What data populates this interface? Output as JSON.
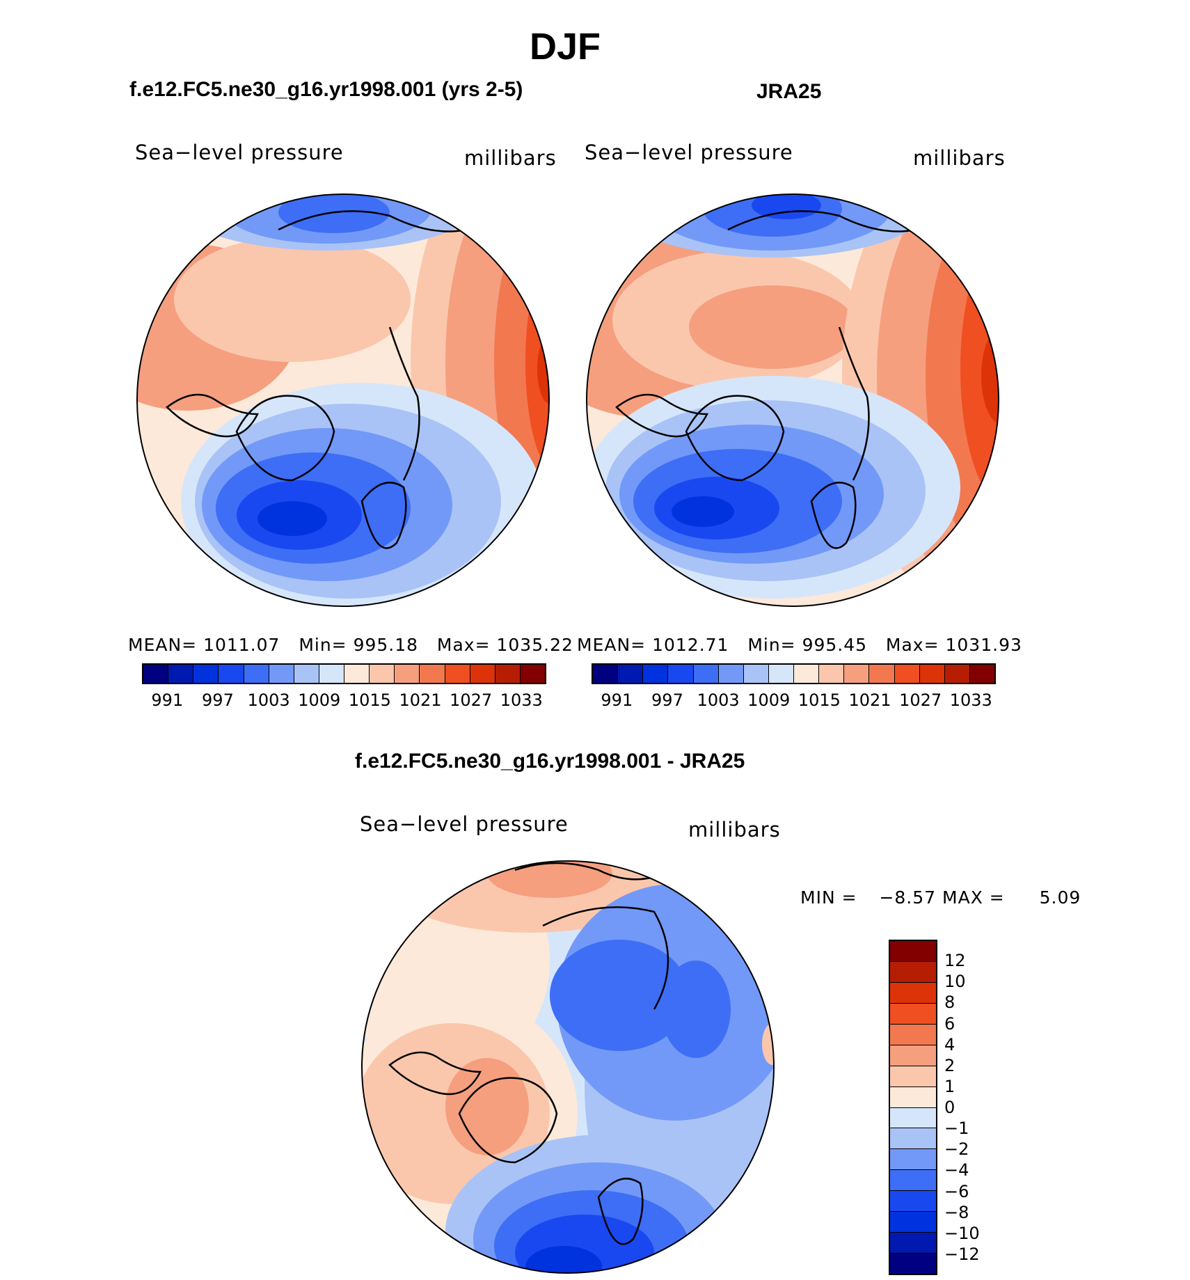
{
  "title": "DJF",
  "panels": {
    "model": {
      "title": "f.e12.FC5.ne30_g16.yr1998.001 (yrs 2-5)",
      "variable": "Sea−level pressure",
      "units": "millibars",
      "stats": {
        "mean_label": "MEAN=",
        "mean": "1011.07",
        "min_label": "Min=",
        "min": "995.18",
        "max_label": "Max=",
        "max": "1035.22"
      }
    },
    "obs": {
      "title": "JRA25",
      "variable": "Sea−level pressure",
      "units": "millibars",
      "stats": {
        "mean_label": "MEAN=",
        "mean": "1012.71",
        "min_label": "Min=",
        "min": "995.45",
        "max_label": "Max=",
        "max": "1031.93"
      }
    },
    "diff": {
      "title": "f.e12.FC5.ne30_g16.yr1998.001 - JRA25",
      "variable": "Sea−level pressure",
      "units": "millibars",
      "stats": {
        "min_label": "MIN =",
        "min": "−8.57",
        "max_label": "MAX =",
        "max": "5.09"
      }
    }
  },
  "colorbar_abs": {
    "colors": [
      "#000080",
      "#0019b0",
      "#0033dd",
      "#1a48f0",
      "#3d6ef5",
      "#7299f7",
      "#a9c3f7",
      "#d6e6fa",
      "#fde9d9",
      "#fac7ad",
      "#f59f7f",
      "#f27850",
      "#f04f22",
      "#dd3308",
      "#b51e03",
      "#820000"
    ],
    "labels": [
      "991",
      "997",
      "1003",
      "1009",
      "1015",
      "1021",
      "1027",
      "1033"
    ]
  },
  "colorbar_diff": {
    "colors": [
      "#820000",
      "#b51e03",
      "#dd3308",
      "#f04f22",
      "#f27850",
      "#f59f7f",
      "#fac7ad",
      "#fde9d9",
      "#d6e6fa",
      "#a9c3f7",
      "#7299f7",
      "#3d6ef5",
      "#1a48f0",
      "#0033dd",
      "#0019b0",
      "#000080"
    ],
    "labels": [
      "12",
      "10",
      "8",
      "6",
      "4",
      "2",
      "1",
      "0",
      "−1",
      "−2",
      "−4",
      "−6",
      "−8",
      "−10",
      "−12"
    ]
  }
}
